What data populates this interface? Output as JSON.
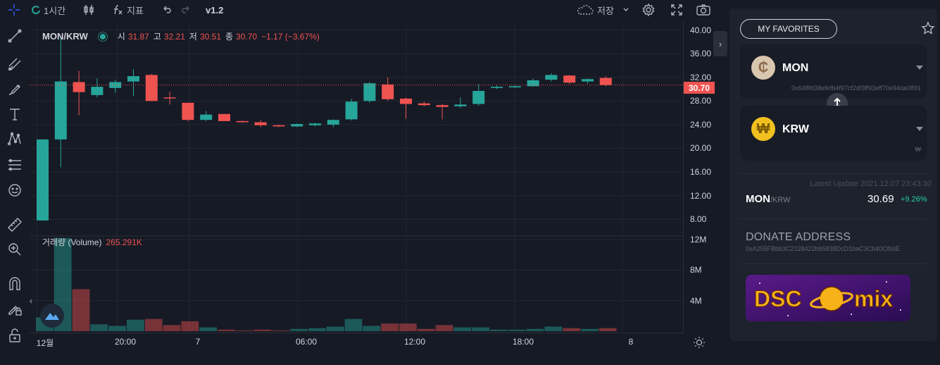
{
  "toolbar": {
    "interval": "1시간",
    "indicators": "지표",
    "version": "v1.2",
    "save": "저장"
  },
  "legend": {
    "symbol": "MON/KRW",
    "open_label": "시",
    "open": "31.87",
    "high_label": "고",
    "high": "32.21",
    "low_label": "저",
    "low": "30.51",
    "close_label": "종",
    "close": "30.70",
    "change": "−1.17 (−3.67%)"
  },
  "volume_legend": {
    "label": "거래량 (Volume)",
    "value": "265.291K"
  },
  "price_tag": "30.70",
  "colors": {
    "up": "#26a69a",
    "down": "#ef5350",
    "bg": "#161a25",
    "panel": "#1e222d"
  },
  "chart_data": {
    "type": "candlestick",
    "price_axis_ticks": [
      "40.00",
      "36.00",
      "32.00",
      "28.00",
      "24.00",
      "20.00",
      "16.00",
      "12.00",
      "8.00"
    ],
    "volume_axis_ticks": [
      "12M",
      "8M",
      "4M"
    ],
    "time_axis_ticks": [
      "12월",
      "20:00",
      "7",
      "06:00",
      "12:00",
      "18:00",
      "8"
    ],
    "ylim": [
      6,
      41.5
    ],
    "candles": [
      {
        "o": 7.8,
        "h": 21.5,
        "l": 7.8,
        "c": 21.5,
        "v": 1.8
      },
      {
        "o": 21.5,
        "h": 38.8,
        "l": 16.8,
        "c": 31.3,
        "v": 12.2
      },
      {
        "o": 31.2,
        "h": 33.1,
        "l": 25.6,
        "c": 29.5,
        "v": 5.5
      },
      {
        "o": 29.0,
        "h": 31.8,
        "l": 28.6,
        "c": 30.4,
        "v": 0.9
      },
      {
        "o": 30.2,
        "h": 31.6,
        "l": 29.4,
        "c": 31.2,
        "v": 0.7
      },
      {
        "o": 31.3,
        "h": 33.4,
        "l": 28.8,
        "c": 32.2,
        "v": 1.5
      },
      {
        "o": 32.4,
        "h": 32.6,
        "l": 28.0,
        "c": 28.0,
        "v": 1.6
      },
      {
        "o": 28.6,
        "h": 29.6,
        "l": 27.4,
        "c": 28.5,
        "v": 0.8
      },
      {
        "o": 27.7,
        "h": 27.7,
        "l": 24.6,
        "c": 24.8,
        "v": 1.3
      },
      {
        "o": 24.8,
        "h": 26.3,
        "l": 24.6,
        "c": 25.7,
        "v": 0.5
      },
      {
        "o": 25.8,
        "h": 25.8,
        "l": 24.6,
        "c": 24.6,
        "v": 0.2
      },
      {
        "o": 24.6,
        "h": 24.7,
        "l": 24.4,
        "c": 24.4,
        "v": 0.1
      },
      {
        "o": 24.4,
        "h": 24.8,
        "l": 23.6,
        "c": 23.9,
        "v": 0.2
      },
      {
        "o": 23.9,
        "h": 24.0,
        "l": 23.6,
        "c": 23.7,
        "v": 0.1
      },
      {
        "o": 23.7,
        "h": 24.2,
        "l": 23.6,
        "c": 24.1,
        "v": 0.3
      },
      {
        "o": 23.9,
        "h": 24.3,
        "l": 23.7,
        "c": 24.2,
        "v": 0.4
      },
      {
        "o": 24.0,
        "h": 24.9,
        "l": 23.6,
        "c": 24.8,
        "v": 0.6
      },
      {
        "o": 24.9,
        "h": 28.4,
        "l": 24.7,
        "c": 27.9,
        "v": 1.6
      },
      {
        "o": 28.0,
        "h": 31.2,
        "l": 27.7,
        "c": 31.0,
        "v": 0.7
      },
      {
        "o": 30.8,
        "h": 32.0,
        "l": 28.0,
        "c": 28.3,
        "v": 1.0
      },
      {
        "o": 28.4,
        "h": 28.6,
        "l": 25.0,
        "c": 27.5,
        "v": 1.0
      },
      {
        "o": 27.6,
        "h": 27.9,
        "l": 27.1,
        "c": 27.3,
        "v": 0.3
      },
      {
        "o": 27.3,
        "h": 27.5,
        "l": 24.9,
        "c": 27.0,
        "v": 0.8
      },
      {
        "o": 27.1,
        "h": 28.6,
        "l": 26.8,
        "c": 27.4,
        "v": 0.5
      },
      {
        "o": 27.5,
        "h": 30.8,
        "l": 27.2,
        "c": 29.7,
        "v": 0.5
      },
      {
        "o": 30.2,
        "h": 30.6,
        "l": 30.0,
        "c": 30.4,
        "v": 0.2
      },
      {
        "o": 30.3,
        "h": 30.6,
        "l": 30.2,
        "c": 30.5,
        "v": 0.2
      },
      {
        "o": 30.5,
        "h": 31.8,
        "l": 30.4,
        "c": 31.5,
        "v": 0.3
      },
      {
        "o": 31.6,
        "h": 32.7,
        "l": 31.3,
        "c": 32.4,
        "v": 0.6
      },
      {
        "o": 32.3,
        "h": 32.4,
        "l": 30.9,
        "c": 31.1,
        "v": 0.4
      },
      {
        "o": 31.3,
        "h": 31.8,
        "l": 30.9,
        "c": 31.7,
        "v": 0.3
      },
      {
        "o": 31.9,
        "h": 32.2,
        "l": 30.5,
        "c": 30.7,
        "v": 0.4
      }
    ]
  },
  "panel": {
    "favorites": "MY FAVORITES",
    "base": {
      "name": "MON",
      "symbol": "₵",
      "address": "0x648fd38efefb4f97cf2df3ff93eff70e94da0891"
    },
    "quote": {
      "name": "KRW",
      "symbol": "₩",
      "address": "₩"
    },
    "latest_update": "Latest Update 2021.12.07 23:43:30",
    "pair_base": "MON",
    "pair_quote": "/KRW",
    "last_price": "30.69",
    "change": "+9.26%",
    "donate_title": "DONATE ADDRESS",
    "donate_address": "0xA255FBbb3C2128422bb5838DcD1baC3Cb40Cfb3E",
    "banner_left": "DSC",
    "banner_right": "mix"
  }
}
